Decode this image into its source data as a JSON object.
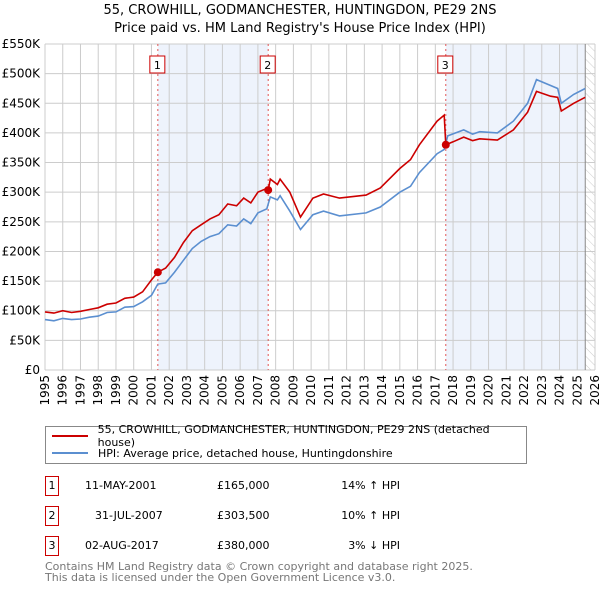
{
  "title": "55, CROWHILL, GODMANCHESTER, HUNTINGDON, PE29 2NS",
  "subtitle": "Price paid vs. HM Land Registry's House Price Index (HPI)",
  "colors": {
    "property": "#cc0000",
    "hpi": "#5b8fd0",
    "shade": "#eef3fc",
    "grid": "#cccccc"
  },
  "chart_data": {
    "type": "line",
    "xlim": [
      1995,
      2026
    ],
    "ylim": [
      0,
      550000
    ],
    "x_ticks": [
      "1995",
      "1996",
      "1997",
      "1998",
      "1999",
      "2000",
      "2001",
      "2002",
      "2003",
      "2004",
      "2005",
      "2006",
      "2007",
      "2008",
      "2009",
      "2010",
      "2011",
      "2012",
      "2013",
      "2014",
      "2015",
      "2016",
      "2017",
      "2018",
      "2019",
      "2020",
      "2021",
      "2022",
      "2023",
      "2024",
      "2025",
      "2026"
    ],
    "y_ticks": [
      {
        "v": 0,
        "label": "£0"
      },
      {
        "v": 50000,
        "label": "£50K"
      },
      {
        "v": 100000,
        "label": "£100K"
      },
      {
        "v": 150000,
        "label": "£150K"
      },
      {
        "v": 200000,
        "label": "£200K"
      },
      {
        "v": 250000,
        "label": "£250K"
      },
      {
        "v": 300000,
        "label": "£300K"
      },
      {
        "v": 350000,
        "label": "£350K"
      },
      {
        "v": 400000,
        "label": "£400K"
      },
      {
        "v": 450000,
        "label": "£450K"
      },
      {
        "v": 500000,
        "label": "£500K"
      },
      {
        "v": 550000,
        "label": "£550K"
      }
    ],
    "grid": true,
    "shaded_ranges": [
      [
        2001.36,
        2007.58
      ],
      [
        2017.59,
        2025.45
      ]
    ],
    "hatched_from": 2025.45,
    "series": [
      {
        "name": "55, CROWHILL, GODMANCHESTER, HUNTINGDON, PE29 2NS (detached house)",
        "key": "property",
        "points": [
          [
            1995.0,
            98
          ],
          [
            1995.5,
            96
          ],
          [
            1996.0,
            100
          ],
          [
            1996.5,
            97
          ],
          [
            1997.0,
            99
          ],
          [
            1997.5,
            102
          ],
          [
            1998.0,
            105
          ],
          [
            1998.5,
            111
          ],
          [
            1999.0,
            113
          ],
          [
            1999.5,
            121
          ],
          [
            2000.0,
            123
          ],
          [
            2000.5,
            132
          ],
          [
            2001.0,
            152
          ],
          [
            2001.36,
            165
          ],
          [
            2001.8,
            172
          ],
          [
            2002.3,
            190
          ],
          [
            2002.8,
            215
          ],
          [
            2003.3,
            235
          ],
          [
            2003.8,
            245
          ],
          [
            2004.3,
            255
          ],
          [
            2004.8,
            262
          ],
          [
            2005.3,
            280
          ],
          [
            2005.8,
            277
          ],
          [
            2006.2,
            290
          ],
          [
            2006.6,
            282
          ],
          [
            2007.0,
            300
          ],
          [
            2007.4,
            305
          ],
          [
            2007.58,
            303.5
          ],
          [
            2007.7,
            322
          ],
          [
            2008.1,
            313
          ],
          [
            2008.25,
            322
          ],
          [
            2008.8,
            300
          ],
          [
            2009.4,
            258
          ],
          [
            2010.1,
            290
          ],
          [
            2010.7,
            297
          ],
          [
            2011.6,
            290
          ],
          [
            2013.1,
            295
          ],
          [
            2013.9,
            307
          ],
          [
            2015.0,
            340
          ],
          [
            2015.6,
            355
          ],
          [
            2016.1,
            380
          ],
          [
            2017.1,
            420
          ],
          [
            2017.5,
            430
          ],
          [
            2017.59,
            380
          ],
          [
            2018.0,
            385
          ],
          [
            2018.6,
            393
          ],
          [
            2019.1,
            387
          ],
          [
            2019.5,
            390
          ],
          [
            2020.5,
            388
          ],
          [
            2021.4,
            405
          ],
          [
            2022.2,
            435
          ],
          [
            2022.7,
            470
          ],
          [
            2023.5,
            462
          ],
          [
            2023.9,
            460
          ],
          [
            2024.1,
            437
          ],
          [
            2024.8,
            450
          ],
          [
            2025.45,
            460
          ]
        ]
      },
      {
        "name": "HPI: Average price, detached house, Huntingdonshire",
        "key": "hpi",
        "points": [
          [
            1995.0,
            85
          ],
          [
            1995.5,
            83
          ],
          [
            1996.0,
            87
          ],
          [
            1996.5,
            85
          ],
          [
            1997.0,
            86
          ],
          [
            1997.5,
            89
          ],
          [
            1998.0,
            91
          ],
          [
            1998.5,
            97
          ],
          [
            1999.0,
            98
          ],
          [
            1999.5,
            106
          ],
          [
            2000.0,
            107
          ],
          [
            2000.5,
            115
          ],
          [
            2001.0,
            126
          ],
          [
            2001.36,
            145
          ],
          [
            2001.8,
            147
          ],
          [
            2002.3,
            165
          ],
          [
            2002.8,
            185
          ],
          [
            2003.3,
            205
          ],
          [
            2003.8,
            217
          ],
          [
            2004.3,
            225
          ],
          [
            2004.8,
            230
          ],
          [
            2005.3,
            245
          ],
          [
            2005.8,
            243
          ],
          [
            2006.2,
            255
          ],
          [
            2006.6,
            247
          ],
          [
            2007.0,
            265
          ],
          [
            2007.5,
            272
          ],
          [
            2007.7,
            292
          ],
          [
            2008.1,
            287
          ],
          [
            2008.25,
            294
          ],
          [
            2008.8,
            268
          ],
          [
            2009.4,
            237
          ],
          [
            2010.1,
            262
          ],
          [
            2010.7,
            268
          ],
          [
            2011.6,
            260
          ],
          [
            2013.1,
            265
          ],
          [
            2013.9,
            275
          ],
          [
            2015.0,
            300
          ],
          [
            2015.6,
            310
          ],
          [
            2016.1,
            333
          ],
          [
            2017.1,
            365
          ],
          [
            2017.5,
            372
          ],
          [
            2017.7,
            395
          ],
          [
            2018.6,
            405
          ],
          [
            2019.1,
            398
          ],
          [
            2019.5,
            402
          ],
          [
            2020.5,
            400
          ],
          [
            2021.4,
            420
          ],
          [
            2022.2,
            450
          ],
          [
            2022.7,
            490
          ],
          [
            2023.5,
            480
          ],
          [
            2023.9,
            475
          ],
          [
            2024.1,
            450
          ],
          [
            2024.8,
            465
          ],
          [
            2025.45,
            475
          ]
        ]
      }
    ],
    "value_unit": "thousands GBP for points",
    "sales": [
      {
        "n": "1",
        "x": 2001.36,
        "y": 165
      },
      {
        "n": "2",
        "x": 2007.58,
        "y": 303.5
      },
      {
        "n": "3",
        "x": 2017.59,
        "y": 380
      }
    ]
  },
  "legend": {
    "property": "55, CROWHILL, GODMANCHESTER, HUNTINGDON, PE29 2NS (detached house)",
    "hpi": "HPI: Average price, detached house, Huntingdonshire"
  },
  "transactions": [
    {
      "n": "1",
      "date": "11-MAY-2001",
      "price": "£165,000",
      "hpi": "14% ↑ HPI"
    },
    {
      "n": "2",
      "date": "31-JUL-2007",
      "price": "£303,500",
      "hpi": "10% ↑ HPI"
    },
    {
      "n": "3",
      "date": "02-AUG-2017",
      "price": "£380,000",
      "hpi": "3% ↓ HPI"
    }
  ],
  "footer": {
    "line1": "Contains HM Land Registry data © Crown copyright and database right 2025.",
    "line2": "This data is licensed under the Open Government Licence v3.0."
  }
}
